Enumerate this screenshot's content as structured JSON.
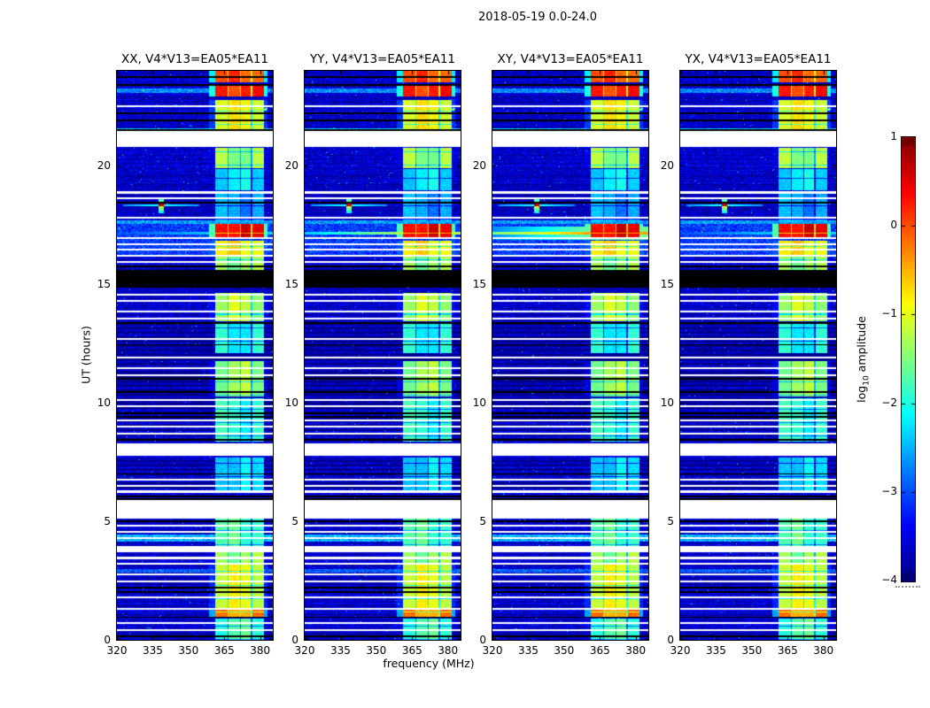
{
  "chart_data": {
    "type": "heatmap",
    "title": "2018-05-19 0.0-24.0",
    "xlabel": "frequency (MHz)",
    "ylabel": "UT (hours)",
    "xlim": [
      320,
      385.3
    ],
    "ylim": [
      0,
      24
    ],
    "xticks": [
      320,
      335,
      350,
      365,
      380
    ],
    "xtick_labels": [
      "320",
      "335",
      "350",
      "365",
      "380"
    ],
    "yticks": [
      0,
      5,
      10,
      15,
      20
    ],
    "ytick_labels": [
      "0",
      "5",
      "10",
      "15",
      "20"
    ],
    "colorbar": {
      "label": "log10 amplitude",
      "label_prefix": "log",
      "label_sub": "10",
      "label_suffix": " amplitude",
      "lim": [
        -4,
        1
      ],
      "ticks": [
        1,
        0,
        -1,
        -2,
        -3,
        -4
      ],
      "tick_labels": [
        "1",
        "0",
        "−1",
        "−2",
        "−3",
        "−4"
      ],
      "colormap": "jet"
    },
    "panels": [
      {
        "title": "XX, V4*V13=EA05*EA11",
        "sun_line": [
          -3.1,
          -2.3
        ]
      },
      {
        "title": "YY, V4*V13=EA05*EA11",
        "sun_line": [
          -2.4,
          -1.2
        ]
      },
      {
        "title": "XY, V4*V13=EA05*EA11",
        "sun_line": [
          -1.5,
          -0.4
        ]
      },
      {
        "title": "YX, V4*V13=EA05*EA11",
        "sun_line": [
          -3.1,
          -2.3
        ]
      }
    ],
    "background_level": -3.82,
    "rfi_glow_band": [
      358.5,
      383.0
    ],
    "rfi_subbands": [
      [
        361.3,
        366.2
      ],
      [
        366.9,
        371.4
      ],
      [
        372.1,
        375.9
      ],
      [
        376.6,
        381.6
      ]
    ],
    "rfi_events": [
      {
        "t": [
          23.5,
          24.0
        ],
        "level": 0.0
      },
      {
        "t": [
          22.9,
          23.4
        ],
        "level": 0.2
      },
      {
        "t": [
          21.55,
          22.75
        ],
        "level": -0.9
      },
      {
        "t": [
          19.9,
          20.75
        ],
        "level": -1.4
      },
      {
        "t": [
          18.95,
          19.85
        ],
        "level": -2.2
      },
      {
        "t": [
          17.6,
          18.9
        ],
        "level": -2.6
      },
      {
        "t": [
          16.9,
          17.55
        ],
        "level": 0.45
      },
      {
        "t": [
          16.2,
          16.85
        ],
        "level": -0.8
      },
      {
        "t": [
          15.6,
          16.15
        ],
        "level": -1.4
      },
      {
        "t": [
          13.45,
          14.65
        ],
        "level": -1.2
      },
      {
        "t": [
          12.1,
          13.4
        ],
        "level": -2.1
      },
      {
        "t": [
          10.25,
          11.75
        ],
        "level": -1.35
      },
      {
        "t": [
          8.35,
          10.2
        ],
        "level": -1.95
      },
      {
        "t": [
          6.2,
          7.7
        ],
        "level": -2.3
      },
      {
        "t": [
          3.95,
          5.1
        ],
        "level": -1.75
      },
      {
        "t": [
          3.25,
          3.9
        ],
        "level": -1.4
      },
      {
        "t": [
          0.95,
          3.2
        ],
        "level": -1.0
      },
      {
        "t": [
          0.95,
          1.3
        ],
        "level": -0.35
      },
      {
        "t": [
          0.0,
          0.9
        ],
        "level": -1.75
      }
    ],
    "white_gaps": [
      [
        20.8,
        21.45
      ],
      [
        7.75,
        8.3
      ],
      [
        5.13,
        5.88
      ],
      [
        3.71,
        3.94
      ]
    ],
    "white_lines": [
      22.5,
      18.87,
      18.64,
      17.82,
      16.95,
      16.7,
      16.45,
      16.2,
      15.95,
      14.55,
      14.3,
      13.85,
      13.55,
      12.7,
      11.9,
      11.45,
      11.15,
      10.1,
      9.85,
      9.25,
      9.0,
      8.7,
      6.75,
      6.5,
      6.25,
      4.8,
      4.55,
      4.3,
      3.45,
      3.2,
      2.75,
      2.45,
      1.8,
      1.3,
      0.7,
      0.4
    ],
    "black_bands": [
      [
        14.85,
        15.6
      ]
    ],
    "black_lines": [
      23.75,
      23.4,
      22.2,
      21.9,
      21.5,
      18.45,
      15.75,
      13.35,
      12.45,
      11.0,
      10.45,
      9.55,
      9.4,
      8.45,
      7.0,
      6.05,
      5.95,
      5.0,
      2.2,
      2.0,
      0.95,
      0.15
    ],
    "bright_rows": [
      {
        "t": [
          23.05,
          23.25
        ],
        "level": -2.7
      },
      {
        "t": [
          21.45,
          21.58
        ],
        "level": -2.3
      },
      {
        "t": [
          17.55,
          17.7
        ],
        "level": -2.6
      },
      {
        "t": [
          16.15,
          17.6
        ],
        "level": -3.1
      },
      {
        "t": [
          4.15,
          4.45
        ],
        "level": -2.5
      },
      {
        "t": [
          2.85,
          3.0
        ],
        "level": -2.9
      }
    ],
    "striped_regions": [
      [
        8.35,
        13.45
      ],
      [
        6.1,
        7.7
      ]
    ],
    "diagonal_streaks": [
      {
        "t0": 21.65,
        "t1": 22.4,
        "level": -1.7
      },
      {
        "t0": 22.1,
        "t1": 22.85,
        "level": -1.8
      }
    ],
    "sun_line_time": 17.15,
    "flare_point": {
      "t": 18.33,
      "f": 338.5,
      "level": 0.7
    }
  }
}
